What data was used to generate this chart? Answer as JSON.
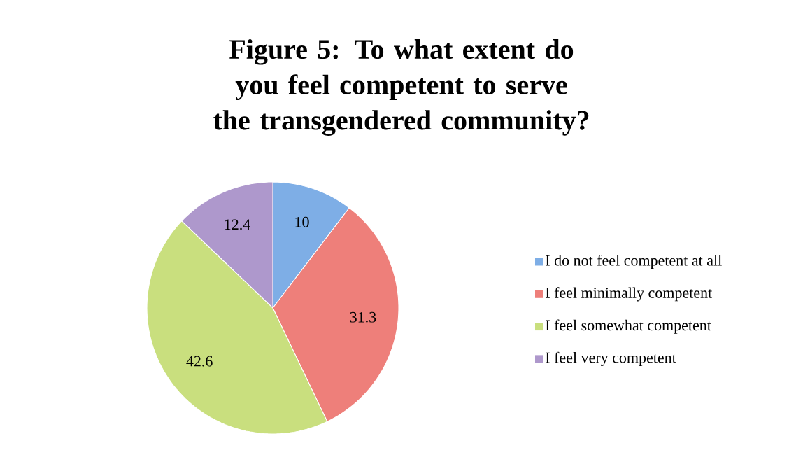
{
  "chart_data": {
    "type": "pie",
    "title": "Figure 5: To what extent do you feel competent to serve the transgendered community?",
    "categories": [
      "I do not feel competent at all",
      "I feel minimally competent",
      "I feel somewhat competent",
      "I feel very competent"
    ],
    "values": [
      10,
      31.3,
      42.6,
      12.4
    ],
    "colors": [
      "#7eaee6",
      "#ee7f7a",
      "#c9df7e",
      "#ae98cc"
    ],
    "data_labels": true,
    "legend": "right"
  }
}
